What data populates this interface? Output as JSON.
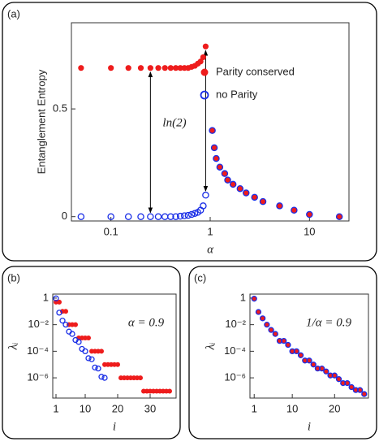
{
  "chart_data": [
    {
      "type": "scatter",
      "panel_label": "(a)",
      "xlabel": "α",
      "ylabel": "Entanglement Entropy",
      "annotation": "ln(2)",
      "xscale": "log",
      "xlim": [
        0.04,
        25
      ],
      "xticks": [
        0.1,
        1,
        10
      ],
      "ylim": [
        -0.02,
        0.9
      ],
      "yticks": [
        0,
        0.5
      ],
      "legend": "upper right",
      "series": [
        {
          "name": "Parity conserved",
          "color": "#ee1c1c",
          "marker": "filled",
          "x": [
            0.05,
            0.1,
            0.15,
            0.2,
            0.25,
            0.3,
            0.35,
            0.4,
            0.45,
            0.5,
            0.55,
            0.6,
            0.65,
            0.7,
            0.75,
            0.8,
            0.85,
            0.9,
            1.05,
            1.1,
            1.15,
            1.25,
            1.4,
            1.5,
            1.7,
            2,
            2.3,
            2.8,
            3.4,
            5,
            7,
            10,
            20
          ],
          "values": [
            0.69,
            0.69,
            0.69,
            0.69,
            0.69,
            0.69,
            0.69,
            0.69,
            0.69,
            0.69,
            0.69,
            0.69,
            0.695,
            0.7,
            0.71,
            0.72,
            0.74,
            0.79,
            0.4,
            0.32,
            0.27,
            0.23,
            0.2,
            0.17,
            0.15,
            0.13,
            0.11,
            0.09,
            0.07,
            0.05,
            0.03,
            0.01,
            0.0
          ]
        },
        {
          "name": "no Parity",
          "color": "#1a2ee6",
          "marker": "open",
          "x": [
            0.05,
            0.1,
            0.15,
            0.2,
            0.25,
            0.3,
            0.35,
            0.4,
            0.45,
            0.5,
            0.55,
            0.6,
            0.65,
            0.7,
            0.75,
            0.8,
            0.85,
            0.9,
            1.05,
            1.1,
            1.15,
            1.25,
            1.4,
            1.5,
            1.7,
            2,
            2.3,
            2.8,
            3.4,
            5,
            7,
            10,
            20
          ],
          "values": [
            0,
            0,
            0,
            0,
            0,
            0,
            0,
            0,
            0,
            0.002,
            0.004,
            0.006,
            0.01,
            0.015,
            0.02,
            0.03,
            0.05,
            0.1,
            0.4,
            0.32,
            0.27,
            0.23,
            0.2,
            0.17,
            0.15,
            0.13,
            0.11,
            0.09,
            0.07,
            0.05,
            0.03,
            0.01,
            0.0
          ]
        }
      ]
    },
    {
      "type": "scatter",
      "panel_label": "(b)",
      "xlabel": "i",
      "ylabel": "λᵢ",
      "annotation": "α = 0.9",
      "yscale": "log",
      "xlim": [
        0,
        38
      ],
      "xticks": [
        1,
        10,
        20,
        30
      ],
      "ylim": [
        3e-08,
        2
      ],
      "yticks": [
        1,
        {
          "value": 0.01,
          "label": "10⁻²"
        },
        {
          "value": 0.0001,
          "label": "10⁻⁴"
        },
        {
          "value": 1e-06,
          "label": "10⁻⁶"
        }
      ],
      "series": [
        {
          "color": "#ee1c1c",
          "marker": "filled",
          "x": [
            1,
            2,
            3,
            4,
            5,
            6,
            7,
            8,
            9,
            10,
            11,
            12,
            13,
            14,
            15,
            16,
            17,
            18,
            19,
            20,
            21,
            22,
            23,
            24,
            25,
            26,
            27,
            28,
            29,
            30,
            31,
            32,
            33,
            34,
            35,
            36
          ],
          "values": [
            0.5,
            0.5,
            0.1,
            0.1,
            0.01,
            0.01,
            0.01,
            0.001,
            0.001,
            0.001,
            0.001,
            0.0001,
            0.0001,
            0.0001,
            0.0001,
            1e-05,
            1e-05,
            1e-05,
            1e-05,
            1e-05,
            1e-06,
            1e-06,
            1e-06,
            1e-06,
            1e-06,
            1e-06,
            1e-06,
            1e-07,
            1e-07,
            1e-07,
            1e-07,
            1e-07,
            1e-07,
            1e-07,
            1e-07,
            1e-07
          ]
        },
        {
          "color": "#1a2ee6",
          "marker": "open",
          "x": [
            1,
            2,
            3,
            4,
            5,
            6,
            7,
            8,
            9,
            10,
            11,
            12,
            13,
            14,
            15,
            16
          ],
          "values": [
            0.95,
            0.08,
            0.02,
            0.01,
            0.003,
            0.002,
            0.0007,
            0.0005,
            0.00015,
            0.0001,
            3e-05,
            2.5e-05,
            6e-06,
            5e-06,
            1.2e-06,
            1e-06
          ]
        }
      ]
    },
    {
      "type": "scatter",
      "panel_label": "(c)",
      "xlabel": "i",
      "ylabel": "λᵢ",
      "annotation": "1/α = 0.9",
      "yscale": "log",
      "xlim": [
        0,
        28
      ],
      "xticks": [
        1,
        10,
        20
      ],
      "ylim": [
        3e-08,
        2
      ],
      "yticks": [
        1,
        {
          "value": 0.01,
          "label": "10⁻²"
        },
        {
          "value": 0.0001,
          "label": "10⁻⁴"
        },
        {
          "value": 1e-06,
          "label": "10⁻⁶"
        }
      ],
      "series": [
        {
          "color": "#ee1c1c",
          "marker": "filled",
          "x": [
            1,
            2,
            3,
            4,
            5,
            6,
            7,
            8,
            9,
            10,
            11,
            12,
            13,
            14,
            15,
            16,
            17,
            18,
            19,
            20,
            21,
            22,
            23,
            24,
            25,
            26,
            27
          ],
          "values": [
            0.9,
            0.09,
            0.03,
            0.01,
            0.004,
            0.002,
            0.0006,
            0.0006,
            0.0003,
            0.0001,
            0.0001,
            5e-05,
            2e-05,
            2e-05,
            1e-05,
            5e-06,
            5e-06,
            3e-06,
            1.5e-06,
            1.5e-06,
            8e-07,
            4e-07,
            4e-07,
            2e-07,
            1.2e-07,
            1.2e-07,
            6e-08
          ]
        },
        {
          "color": "#1a2ee6",
          "marker": "open",
          "x": [
            1,
            2,
            3,
            4,
            5,
            6,
            7,
            8,
            9,
            10,
            11,
            12,
            13,
            14,
            15,
            16,
            17,
            18,
            19,
            20,
            21,
            22,
            23,
            24,
            25,
            26,
            27
          ],
          "values": [
            0.9,
            0.09,
            0.03,
            0.01,
            0.004,
            0.002,
            0.0006,
            0.0006,
            0.0003,
            0.0001,
            0.0001,
            5e-05,
            2e-05,
            2e-05,
            1e-05,
            5e-06,
            5e-06,
            3e-06,
            1.5e-06,
            1.5e-06,
            8e-07,
            4e-07,
            4e-07,
            2e-07,
            1.2e-07,
            1.2e-07,
            6e-08
          ]
        }
      ]
    }
  ]
}
